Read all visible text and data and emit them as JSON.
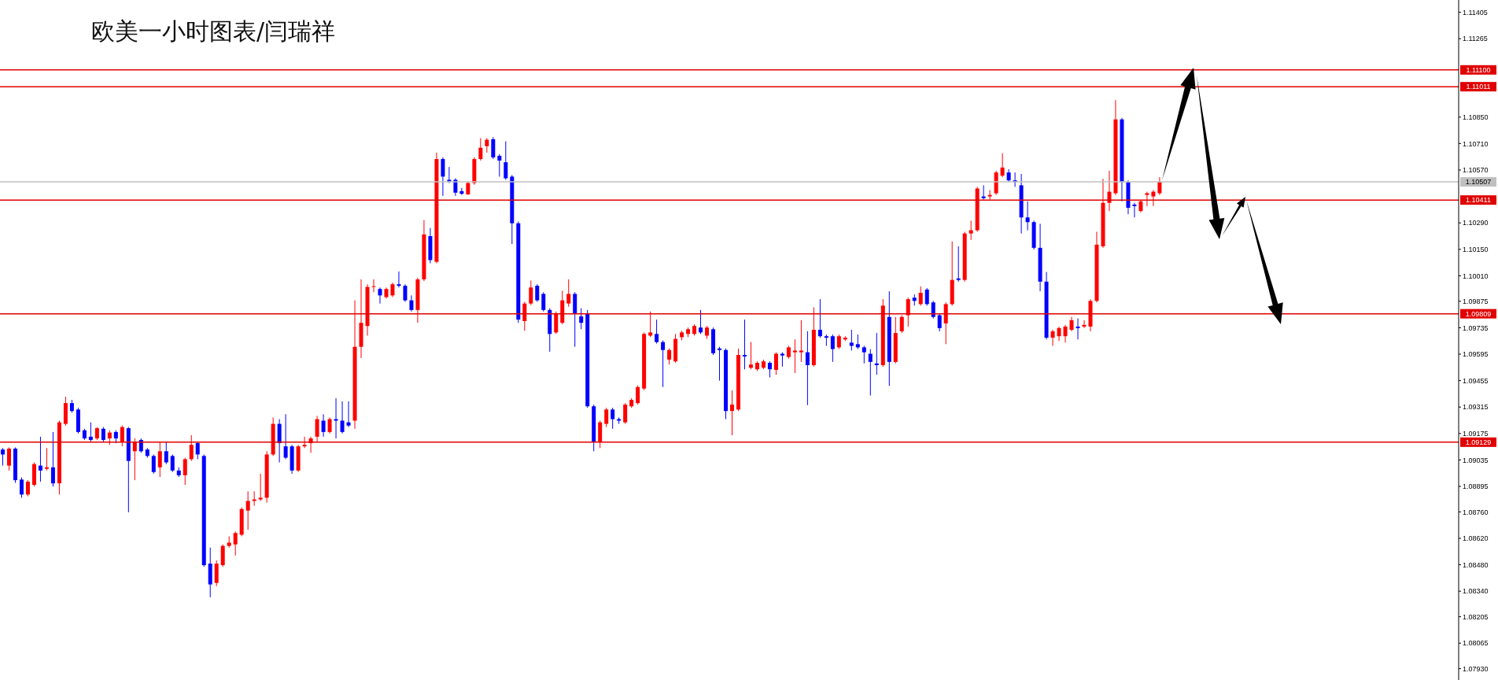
{
  "chart_data": {
    "type": "candlestick",
    "title": "欧美一小时图表/闫瑞祥",
    "tick_labels": "y",
    "categories": [
      null,
      null,
      null,
      null,
      null,
      null,
      null,
      null,
      null,
      null,
      null,
      null,
      null,
      null,
      null,
      null,
      null,
      null,
      null,
      null,
      null,
      null,
      null,
      null,
      null,
      null,
      null,
      null,
      null,
      null,
      null,
      null,
      null,
      null,
      null,
      null,
      null,
      null,
      null,
      null,
      null,
      null,
      null,
      null,
      null,
      null,
      null,
      null,
      null,
      null,
      null,
      null,
      null,
      null,
      null,
      null,
      null,
      null,
      null,
      null,
      null,
      null,
      null,
      null,
      null,
      null,
      null,
      null,
      null,
      null,
      null,
      null,
      null,
      null,
      null,
      null,
      null,
      null,
      null,
      null,
      null,
      null,
      null,
      null,
      null,
      null,
      null,
      null,
      null,
      null,
      null,
      null,
      null,
      null,
      null,
      null,
      null,
      null,
      null,
      null,
      null,
      null,
      null,
      null,
      null,
      null,
      null,
      null,
      null,
      null,
      null,
      null,
      null,
      null,
      null,
      null,
      null,
      null,
      null,
      null,
      null,
      null,
      null,
      null,
      null,
      null,
      null,
      null,
      null,
      null,
      null,
      null,
      null,
      null,
      null,
      null,
      null,
      null,
      null,
      null,
      null,
      null,
      null,
      null,
      null,
      null,
      null,
      null,
      null,
      null,
      null,
      null,
      null,
      null,
      null,
      null,
      null,
      null,
      null,
      null,
      null,
      null,
      null,
      null,
      null,
      null,
      null,
      null,
      null,
      null,
      null,
      null,
      null,
      null,
      null,
      null,
      null,
      null,
      null,
      null,
      null,
      null,
      null,
      null,
      null,
      null,
      null,
      null,
      null,
      null,
      null,
      null,
      null,
      null,
      null,
      null,
      null,
      null,
      null,
      null,
      null,
      null,
      null,
      null,
      null,
      null,
      null,
      null,
      null,
      null,
      null,
      null,
      null,
      null,
      null,
      null,
      null,
      null,
      null,
      null,
      null,
      null,
      null,
      null,
      null,
      null,
      null,
      null,
      null,
      null,
      null,
      null
    ],
    "ohlc": [
      [
        1.0909,
        1.09098,
        1.09005,
        1.09064
      ],
      [
        1.09005,
        1.09101,
        1.08979,
        1.09095
      ],
      [
        1.09095,
        1.09101,
        1.08914,
        1.08928
      ],
      [
        1.08931,
        1.08942,
        1.08835,
        1.08852
      ],
      [
        1.08852,
        1.08928,
        1.08843,
        1.0892
      ],
      [
        1.08903,
        1.09022,
        1.08894,
        1.09013
      ],
      [
        1.09005,
        1.09158,
        1.0892,
        1.08979
      ],
      [
        1.08988,
        1.09098,
        1.08979,
        1.08996
      ],
      [
        1.08996,
        1.09183,
        1.08894,
        1.08911
      ],
      [
        1.08911,
        1.09243,
        1.08852,
        1.09234
      ],
      [
        1.09226,
        1.0937,
        1.09217,
        1.09336
      ],
      [
        1.09336,
        1.09353,
        1.09285,
        1.09294
      ],
      [
        1.09302,
        1.09311,
        1.09175,
        1.09183
      ],
      [
        1.09192,
        1.092,
        1.09141,
        1.09149
      ],
      [
        1.09158,
        1.09234,
        1.09132,
        1.09141
      ],
      [
        1.09149,
        1.09209,
        1.09141,
        1.09203
      ],
      [
        1.092,
        1.09209,
        1.09132,
        1.09141
      ],
      [
        1.09149,
        1.09192,
        1.09115,
        1.0918
      ],
      [
        1.09183,
        1.09192,
        1.09124,
        1.09149
      ],
      [
        1.09132,
        1.09217,
        1.09107,
        1.09209
      ],
      [
        1.09203,
        1.09209,
        1.08758,
        1.0903
      ],
      [
        1.09081,
        1.09149,
        1.08928,
        1.09132
      ],
      [
        1.09141,
        1.09149,
        1.09073,
        1.09081
      ],
      [
        1.0909,
        1.09098,
        1.09047,
        1.09056
      ],
      [
        1.09056,
        1.09064,
        1.08962,
        1.08971
      ],
      [
        1.08996,
        1.09132,
        1.08945,
        1.09081
      ],
      [
        1.09081,
        1.09132,
        1.09013,
        1.09022
      ],
      [
        1.09056,
        1.09064,
        1.08971,
        1.08979
      ],
      [
        1.08979,
        1.08996,
        1.08945,
        1.08954
      ],
      [
        1.08954,
        1.09047,
        1.08903,
        1.09039
      ],
      [
        1.09039,
        1.09166,
        1.0903,
        1.09115
      ],
      [
        1.09124,
        1.09132,
        1.09039,
        1.09064
      ],
      [
        1.09056,
        1.09064,
        1.08469,
        1.08478
      ],
      [
        1.08486,
        1.08571,
        1.08308,
        1.08376
      ],
      [
        1.08384,
        1.08503,
        1.08367,
        1.08486
      ],
      [
        1.08478,
        1.08588,
        1.08469,
        1.0858
      ],
      [
        1.0858,
        1.08631,
        1.08571,
        1.08597
      ],
      [
        1.08588,
        1.08656,
        1.08529,
        1.08648
      ],
      [
        1.08639,
        1.08784,
        1.08631,
        1.08775
      ],
      [
        1.08767,
        1.08869,
        1.08665,
        1.08818
      ],
      [
        1.08818,
        1.08869,
        1.08792,
        1.08826
      ],
      [
        1.08826,
        1.08962,
        1.08818,
        1.08835
      ],
      [
        1.08835,
        1.09081,
        1.08809,
        1.09064
      ],
      [
        1.09064,
        1.0926,
        1.09056,
        1.09226
      ],
      [
        1.09226,
        1.09251,
        1.09022,
        1.09124
      ],
      [
        1.09107,
        1.09277,
        1.09039,
        1.09047
      ],
      [
        1.09107,
        1.09115,
        1.08962,
        1.08979
      ],
      [
        1.08979,
        1.09115,
        1.08971,
        1.09107
      ],
      [
        1.09107,
        1.09158,
        1.09098,
        1.09115
      ],
      [
        1.09124,
        1.09158,
        1.09073,
        1.09149
      ],
      [
        1.09158,
        1.09268,
        1.09132,
        1.09251
      ],
      [
        1.09243,
        1.09277,
        1.09158,
        1.09183
      ],
      [
        1.09183,
        1.0926,
        1.09175,
        1.09251
      ],
      [
        1.09251,
        1.09362,
        1.09149,
        1.09243
      ],
      [
        1.09243,
        1.09345,
        1.09175,
        1.09183
      ],
      [
        1.09234,
        1.09345,
        1.09209,
        1.09217
      ],
      [
        1.09243,
        1.0988,
        1.092,
        1.09634
      ],
      [
        1.09634,
        1.09991,
        1.09574,
        1.09761
      ],
      [
        1.09744,
        1.09965,
        1.09693,
        1.09951
      ],
      [
        1.09951,
        1.09991,
        1.09923,
        1.09955
      ],
      [
        1.0994,
        1.09948,
        1.09863,
        1.09906
      ],
      [
        1.09897,
        1.09948,
        1.09889,
        1.0994
      ],
      [
        1.09906,
        1.09974,
        1.09897,
        1.09965
      ],
      [
        1.09965,
        1.10033,
        1.09948,
        1.09957
      ],
      [
        1.09957,
        1.09965,
        1.09872,
        1.0988
      ],
      [
        1.0988,
        1.09906,
        1.09821,
        1.09829
      ],
      [
        1.09829,
        1.09999,
        1.09761,
        1.09991
      ],
      [
        1.09991,
        1.10305,
        1.09982,
        1.10229
      ],
      [
        1.1022,
        1.10263,
        1.10076,
        1.10093
      ],
      [
        1.10084,
        1.10662,
        1.10076,
        1.10628
      ],
      [
        1.10628,
        1.10637,
        1.10433,
        1.10535
      ],
      [
        1.10518,
        1.10586,
        1.10501,
        1.10509
      ],
      [
        1.10518,
        1.10526,
        1.10433,
        1.1045
      ],
      [
        1.10458,
        1.10475,
        1.10438,
        1.10444
      ],
      [
        1.10441,
        1.10509,
        1.10438,
        1.10501
      ],
      [
        1.10501,
        1.10637,
        1.10492,
        1.10628
      ],
      [
        1.10628,
        1.10739,
        1.1062,
        1.10688
      ],
      [
        1.10696,
        1.10739,
        1.10662,
        1.1073
      ],
      [
        1.10733,
        1.10744,
        1.10628,
        1.10637
      ],
      [
        1.10645,
        1.10654,
        1.10535,
        1.1062
      ],
      [
        1.10611,
        1.10722,
        1.10518,
        1.10526
      ],
      [
        1.10535,
        1.10543,
        1.10178,
        1.10288
      ],
      [
        1.10288,
        1.10297,
        1.09761,
        1.09778
      ],
      [
        1.0977,
        1.09872,
        1.09719,
        1.09863
      ],
      [
        1.09863,
        1.09985,
        1.09855,
        1.09948
      ],
      [
        1.09957,
        1.09965,
        1.09872,
        1.0988
      ],
      [
        1.09914,
        1.09923,
        1.09821,
        1.09829
      ],
      [
        1.09829,
        1.09838,
        1.09608,
        1.09702
      ],
      [
        1.0971,
        1.09821,
        1.09702,
        1.09812
      ],
      [
        1.09761,
        1.09931,
        1.09753,
        1.0988
      ],
      [
        1.09863,
        1.09991,
        1.09846,
        1.09914
      ],
      [
        1.09914,
        1.09923,
        1.09634,
        1.09812
      ],
      [
        1.09795,
        1.09838,
        1.09727,
        1.09761
      ],
      [
        1.09812,
        1.09829,
        1.09311,
        1.09319
      ],
      [
        1.09319,
        1.09328,
        1.09081,
        1.09132
      ],
      [
        1.09132,
        1.09243,
        1.09098,
        1.09234
      ],
      [
        1.09226,
        1.09311,
        1.09209,
        1.09302
      ],
      [
        1.09302,
        1.09311,
        1.092,
        1.09251
      ],
      [
        1.09251,
        1.0926,
        1.09226,
        1.09243
      ],
      [
        1.09234,
        1.09336,
        1.09226,
        1.09328
      ],
      [
        1.09319,
        1.09362,
        1.09311,
        1.09353
      ],
      [
        1.09336,
        1.0943,
        1.09328,
        1.09421
      ],
      [
        1.09413,
        1.0971,
        1.09404,
        1.09702
      ],
      [
        1.09693,
        1.09821,
        1.09685,
        1.0971
      ],
      [
        1.09702,
        1.09778,
        1.09651,
        1.09659
      ],
      [
        1.09659,
        1.09668,
        1.09421,
        1.09617
      ],
      [
        1.09566,
        1.09625,
        1.0954,
        1.09617
      ],
      [
        1.09557,
        1.09702,
        1.09549,
        1.09676
      ],
      [
        1.09685,
        1.09719,
        1.09668,
        1.0971
      ],
      [
        1.09702,
        1.09736,
        1.09685,
        1.09727
      ],
      [
        1.09702,
        1.09753,
        1.09693,
        1.09744
      ],
      [
        1.09736,
        1.09829,
        1.09702,
        1.0971
      ],
      [
        1.09693,
        1.09744,
        1.09676,
        1.09736
      ],
      [
        1.09727,
        1.09736,
        1.09591,
        1.096
      ],
      [
        1.09625,
        1.09634,
        1.09455,
        1.09617
      ],
      [
        1.09617,
        1.09625,
        1.09251,
        1.09294
      ],
      [
        1.09294,
        1.09404,
        1.09166,
        1.09328
      ],
      [
        1.09302,
        1.09625,
        1.09294,
        1.09591
      ],
      [
        1.09591,
        1.09778,
        1.09515,
        1.09583
      ],
      [
        1.09523,
        1.09659,
        1.09515,
        1.0954
      ],
      [
        1.09515,
        1.09557,
        1.09506,
        1.09549
      ],
      [
        1.09523,
        1.09566,
        1.09515,
        1.09557
      ],
      [
        1.09549,
        1.09557,
        1.09472,
        1.09515
      ],
      [
        1.09512,
        1.09605,
        1.09486,
        1.09597
      ],
      [
        1.09597,
        1.09605,
        1.09529,
        1.09588
      ],
      [
        1.0958,
        1.09639,
        1.09571,
        1.09631
      ],
      [
        1.09605,
        1.09673,
        1.09495,
        1.09614
      ],
      [
        1.09605,
        1.09775,
        1.09554,
        1.09614
      ],
      [
        1.09605,
        1.09716,
        1.09325,
        1.09537
      ],
      [
        1.09537,
        1.09843,
        1.09529,
        1.09724
      ],
      [
        1.09724,
        1.09886,
        1.09682,
        1.0969
      ],
      [
        1.0969,
        1.09699,
        1.09639,
        1.09682
      ],
      [
        1.0969,
        1.09699,
        1.09554,
        1.09622
      ],
      [
        1.09631,
        1.09699,
        1.09622,
        1.0969
      ],
      [
        1.09673,
        1.0969,
        1.09665,
        1.09682
      ],
      [
        1.09656,
        1.09724,
        1.09614,
        1.09639
      ],
      [
        1.09648,
        1.09699,
        1.09622,
        1.09631
      ],
      [
        1.09631,
        1.09639,
        1.09546,
        1.09605
      ],
      [
        1.09597,
        1.09622,
        1.09376,
        1.09554
      ],
      [
        1.09546,
        1.09707,
        1.09486,
        1.09537
      ],
      [
        1.09537,
        1.09886,
        1.09529,
        1.09852
      ],
      [
        1.09792,
        1.09928,
        1.09427,
        1.09554
      ],
      [
        1.09554,
        1.09792,
        1.09546,
        1.09707
      ],
      [
        1.09716,
        1.09801,
        1.09707,
        1.09792
      ],
      [
        1.09801,
        1.09894,
        1.09741,
        1.09886
      ],
      [
        1.09894,
        1.09911,
        1.09852,
        1.09877
      ],
      [
        1.0986,
        1.09954,
        1.09852,
        1.0992
      ],
      [
        1.09937,
        1.09945,
        1.09852,
        1.0986
      ],
      [
        1.09869,
        1.09877,
        1.09784,
        1.09792
      ],
      [
        1.09801,
        1.09809,
        1.09716,
        1.09733
      ],
      [
        1.09758,
        1.09869,
        1.09648,
        1.0986
      ],
      [
        1.0986,
        1.10192,
        1.09852,
        1.09988
      ],
      [
        1.09996,
        1.10166,
        1.09979,
        1.09988
      ],
      [
        1.09988,
        1.10243,
        1.09979,
        1.10234
      ],
      [
        1.10234,
        1.10302,
        1.102,
        1.10251
      ],
      [
        1.10251,
        1.10481,
        1.10243,
        1.10472
      ],
      [
        1.1043,
        1.10489,
        1.10413,
        1.10421
      ],
      [
        1.1043,
        1.10464,
        1.10413,
        1.10438
      ],
      [
        1.10447,
        1.10566,
        1.10438,
        1.10557
      ],
      [
        1.1054,
        1.10659,
        1.10532,
        1.10583
      ],
      [
        1.10557,
        1.10574,
        1.10506,
        1.10515
      ],
      [
        1.10515,
        1.10557,
        1.10481,
        1.10506
      ],
      [
        1.10489,
        1.10549,
        1.10234,
        1.10319
      ],
      [
        1.10319,
        1.10404,
        1.10251,
        1.10294
      ],
      [
        1.10294,
        1.10302,
        1.10149,
        1.10158
      ],
      [
        1.10158,
        1.10285,
        1.09928,
        1.09979
      ],
      [
        1.09979,
        1.1003,
        1.09673,
        1.09682
      ],
      [
        1.09682,
        1.09724,
        1.09639,
        1.09716
      ],
      [
        1.0969,
        1.09741,
        1.09665,
        1.09733
      ],
      [
        1.0969,
        1.0975,
        1.09656,
        1.09741
      ],
      [
        1.09724,
        1.09792,
        1.09716,
        1.09775
      ],
      [
        1.09741,
        1.09784,
        1.09673,
        1.09733
      ],
      [
        1.09741,
        1.09775,
        1.09733,
        1.0975
      ],
      [
        1.09741,
        1.09886,
        1.09716,
        1.09877
      ],
      [
        1.09877,
        1.10243,
        1.09869,
        1.10175
      ],
      [
        1.10166,
        1.10523,
        1.10158,
        1.10396
      ],
      [
        1.10396,
        1.10566,
        1.10353,
        1.10455
      ],
      [
        1.10447,
        1.1094,
        1.10438,
        1.10838
      ],
      [
        1.10838,
        1.10846,
        1.10404,
        1.10506
      ],
      [
        1.10506,
        1.10515,
        1.10336,
        1.1037
      ],
      [
        1.10387,
        1.10396,
        1.10319,
        1.10379
      ],
      [
        1.10353,
        1.10413,
        1.10345,
        1.10404
      ],
      [
        1.10438,
        1.10455,
        1.10379,
        1.10447
      ],
      [
        1.1043,
        1.10464,
        1.10379,
        1.10455
      ],
      [
        1.10447,
        1.10532,
        1.10438,
        1.10507
      ],
      null,
      null,
      null,
      null,
      null,
      null,
      null,
      null,
      null,
      null,
      null,
      null,
      null,
      null,
      null,
      null,
      null,
      null,
      null,
      null,
      null,
      null,
      null,
      null,
      null,
      null,
      null,
      null,
      null,
      null,
      null,
      null,
      null,
      null,
      null,
      null,
      null,
      null,
      null,
      null,
      null,
      null,
      null,
      null,
      null,
      null,
      null
    ],
    "colors": [
      "#0000ff",
      "#ff0000",
      "#0000ff",
      "#0000ff",
      "#ff0000",
      "#ff0000",
      "#0000ff",
      "#ff0000",
      "#0000ff",
      "#ff0000",
      "#ff0000",
      "#0000ff",
      "#0000ff",
      "#0000ff",
      "#0000ff",
      "#ff0000",
      "#0000ff",
      "#ff0000",
      "#0000ff",
      "#ff0000",
      "#0000ff",
      "#ff0000",
      "#0000ff",
      "#0000ff",
      "#0000ff",
      "#ff0000",
      "#0000ff",
      "#0000ff",
      "#0000ff",
      "#ff0000",
      "#ff0000",
      "#0000ff",
      "#0000ff",
      "#0000ff",
      "#ff0000",
      "#ff0000",
      "#ff0000",
      "#ff0000",
      "#ff0000",
      "#ff0000",
      "#ff0000",
      "#ff0000",
      "#ff0000",
      "#ff0000",
      "#0000ff",
      "#0000ff",
      "#0000ff",
      "#ff0000",
      "#ff0000",
      "#ff0000",
      "#ff0000",
      "#0000ff",
      "#ff0000",
      "#0000ff",
      "#0000ff",
      "#0000ff",
      "#ff0000",
      "#ff0000",
      "#ff0000",
      "#ff0000",
      "#0000ff",
      "#ff0000",
      "#ff0000",
      "#0000ff",
      "#0000ff",
      "#0000ff",
      "#ff0000",
      "#ff0000",
      "#0000ff",
      "#ff0000",
      "#0000ff",
      "#0000ff",
      "#0000ff",
      "#0000ff",
      "#ff0000",
      "#ff0000",
      "#ff0000",
      "#ff0000",
      "#0000ff",
      "#0000ff",
      "#0000ff",
      "#0000ff",
      "#0000ff",
      "#ff0000",
      "#ff0000",
      "#0000ff",
      "#0000ff",
      "#0000ff",
      "#ff0000",
      "#ff0000",
      "#ff0000",
      "#0000ff",
      "#0000ff",
      "#0000ff",
      "#0000ff",
      "#ff0000",
      "#ff0000",
      "#0000ff",
      "#0000ff",
      "#ff0000",
      "#ff0000",
      "#ff0000",
      "#ff0000",
      "#ff0000",
      "#0000ff",
      "#0000ff",
      "#ff0000",
      "#ff0000",
      "#ff0000",
      "#ff0000",
      "#ff0000",
      "#0000ff",
      "#ff0000",
      "#0000ff",
      "#0000ff",
      "#0000ff",
      "#ff0000",
      "#ff0000",
      "#0000ff",
      "#ff0000",
      "#ff0000",
      "#ff0000",
      "#0000ff",
      "#ff0000",
      "#0000ff",
      "#ff0000",
      "#ff0000",
      "#ff0000",
      "#0000ff",
      "#ff0000",
      "#0000ff",
      "#0000ff",
      "#0000ff",
      "#ff0000",
      "#ff0000",
      "#0000ff",
      "#0000ff",
      "#0000ff",
      "#0000ff",
      "#0000ff",
      "#ff0000",
      "#0000ff",
      "#ff0000",
      "#ff0000",
      "#ff0000",
      "#0000ff",
      "#ff0000",
      "#0000ff",
      "#0000ff",
      "#0000ff",
      "#ff0000",
      "#ff0000",
      "#0000ff",
      "#ff0000",
      "#ff0000",
      "#ff0000",
      "#0000ff",
      "#ff0000",
      "#ff0000",
      "#ff0000",
      "#0000ff",
      "#0000ff",
      "#0000ff",
      "#0000ff",
      "#0000ff",
      "#0000ff",
      "#0000ff",
      "#ff0000",
      "#ff0000",
      "#ff0000",
      "#ff0000",
      "#0000ff",
      "#ff0000",
      "#ff0000",
      "#ff0000",
      "#ff0000",
      "#ff0000",
      "#ff0000",
      "#0000ff",
      "#0000ff",
      "#0000ff",
      "#ff0000",
      "#ff0000",
      "#ff0000",
      "#ff0000",
      null,
      null,
      null,
      null,
      null,
      null,
      null,
      null,
      null,
      null,
      null,
      null,
      null,
      null,
      null,
      null,
      null,
      null,
      null,
      null,
      null,
      null,
      null,
      null,
      null,
      null,
      null,
      null,
      null,
      null,
      null,
      null,
      null,
      null,
      null,
      null,
      null,
      null,
      null,
      null,
      null,
      null,
      null,
      null,
      null,
      null,
      null
    ],
    "ylim": [
      1.0787,
      1.1147
    ],
    "yticks": [
      {
        "value": 1.0793,
        "label": "1.07930"
      },
      1.08065,
      1.08205,
      {
        "value": 1.0834,
        "label": "1.08340"
      },
      {
        "value": 1.0848,
        "label": "1.08480"
      },
      {
        "value": 1.0862,
        "label": "1.08620"
      },
      {
        "value": 1.0876,
        "label": "1.08760"
      },
      1.08895,
      1.09035,
      1.09175,
      1.09315,
      1.09455,
      1.09595,
      1.09735,
      1.09875,
      {
        "value": 1.1001,
        "label": "1.10010"
      },
      {
        "value": 1.1015,
        "label": "1.10150"
      },
      {
        "value": 1.1029,
        "label": "1.10290"
      },
      {
        "value": 1.1057,
        "label": "1.10570"
      },
      {
        "value": 1.1071,
        "label": "1.10710"
      },
      {
        "value": 1.1085,
        "label": "1.10850"
      },
      1.11265,
      1.11405
    ],
    "ref_lines": [
      {
        "axis": "y",
        "value": 1.111,
        "label": "1.11100",
        "color": "#e00000"
      },
      {
        "axis": "y",
        "value": 1.11011,
        "label": "1.11011",
        "color": "#e00000"
      },
      {
        "axis": "y",
        "value": 1.10507,
        "label": "1.10507",
        "color": "#c0c0c0"
      },
      {
        "axis": "y",
        "value": 1.10411,
        "label": "1.10411",
        "color": "#e00000"
      },
      {
        "axis": "y",
        "value": 1.09809,
        "label": "1.09809",
        "color": "#e00000"
      },
      {
        "axis": "y",
        "value": 1.09129,
        "label": "1.09129",
        "color": "#e00000"
      }
    ]
  }
}
